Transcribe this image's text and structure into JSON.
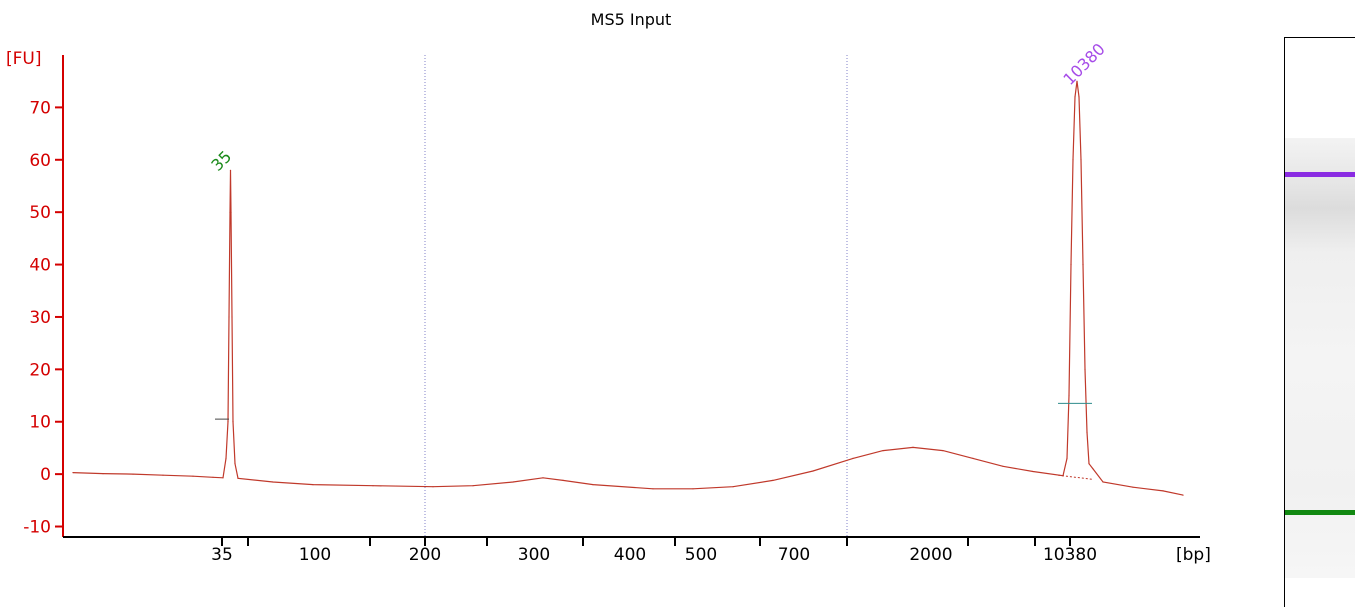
{
  "chart_data": {
    "type": "line",
    "title": "MS5 Input",
    "ylabel": "[FU]",
    "xlabel": "[bp]",
    "ylim": [
      -12,
      80
    ],
    "yticks": [
      -10,
      0,
      10,
      20,
      30,
      40,
      50,
      60,
      70
    ],
    "xtick_labels": [
      "35",
      "100",
      "200",
      "300",
      "400",
      "500",
      "700",
      "2000",
      "10380"
    ],
    "grid": false,
    "peaks": [
      {
        "label": "35",
        "size_bp": 35,
        "fu": 58,
        "color": "#1a8a1a"
      },
      {
        "label": "10380",
        "size_bp": 10380,
        "fu": 75,
        "color": "#a64ce8"
      }
    ],
    "series": [
      {
        "color": "#c0392b",
        "points": [
          [
            0,
            0.3
          ],
          [
            30,
            0.1
          ],
          [
            60,
            0
          ],
          [
            90,
            -0.2
          ],
          [
            120,
            -0.4
          ],
          [
            140,
            -0.6
          ],
          [
            150,
            -0.7
          ],
          [
            153,
            3
          ],
          [
            155,
            10
          ],
          [
            156,
            30
          ],
          [
            157,
            50
          ],
          [
            157.5,
            58
          ],
          [
            158,
            50
          ],
          [
            159,
            30
          ],
          [
            160,
            10
          ],
          [
            162,
            2
          ],
          [
            165,
            -0.8
          ],
          [
            200,
            -1.5
          ],
          [
            240,
            -2
          ],
          [
            300,
            -2.2
          ],
          [
            360,
            -2.4
          ],
          [
            400,
            -2.2
          ],
          [
            440,
            -1.5
          ],
          [
            470,
            -0.7
          ],
          [
            490,
            -1.2
          ],
          [
            520,
            -2
          ],
          [
            580,
            -2.8
          ],
          [
            620,
            -2.8
          ],
          [
            660,
            -2.4
          ],
          [
            700,
            -1.2
          ],
          [
            740,
            0.6
          ],
          [
            780,
            3
          ],
          [
            810,
            4.5
          ],
          [
            840,
            5.1
          ],
          [
            870,
            4.5
          ],
          [
            900,
            3
          ],
          [
            930,
            1.5
          ],
          [
            960,
            0.5
          ],
          [
            990,
            -0.3
          ],
          [
            994,
            3
          ],
          [
            996,
            15
          ],
          [
            998,
            40
          ],
          [
            1000,
            60
          ],
          [
            1002,
            72
          ],
          [
            1004,
            75
          ],
          [
            1006,
            72
          ],
          [
            1008,
            60
          ],
          [
            1010,
            40
          ],
          [
            1012,
            20
          ],
          [
            1014,
            8
          ],
          [
            1016,
            2
          ],
          [
            1020,
            1
          ],
          [
            1030,
            -1.5
          ],
          [
            1060,
            -2.5
          ],
          [
            1090,
            -3.2
          ],
          [
            1110,
            -4
          ]
        ]
      }
    ],
    "markers": [
      {
        "label": "35",
        "fu": 10.5
      },
      {
        "label": "10380",
        "fu": 13.5
      }
    ]
  },
  "gel": {
    "bands": [
      {
        "name": "upper-marker",
        "color": "#8a2be2"
      },
      {
        "name": "lower-marker",
        "color": "#118811"
      }
    ]
  }
}
